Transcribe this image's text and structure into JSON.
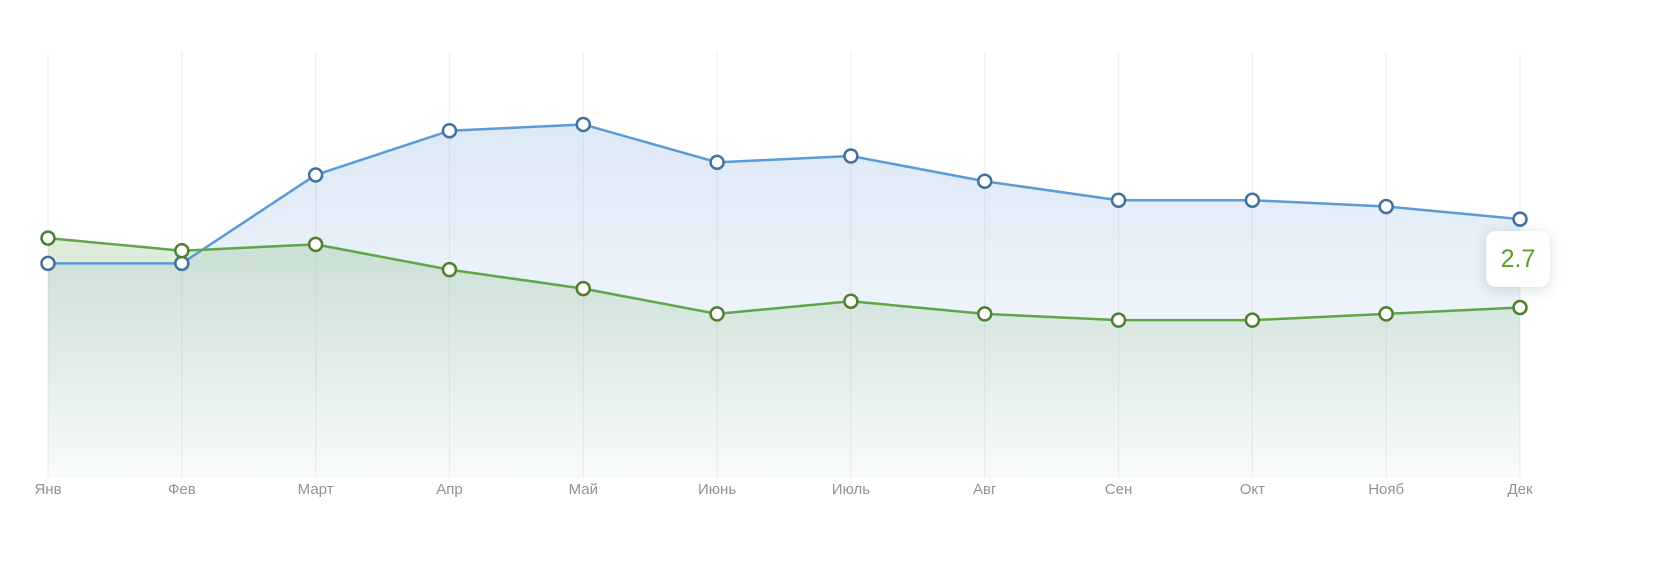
{
  "chart_data": {
    "type": "line",
    "title": "",
    "xlabel": "",
    "ylabel": "",
    "categories": [
      "Янв",
      "Фев",
      "Март",
      "Апр",
      "Май",
      "Июнь",
      "Июль",
      "Авг",
      "Сен",
      "Окт",
      "Нояб",
      "Дек"
    ],
    "series": [
      {
        "name": "blue-series",
        "color": "#5b9bd5",
        "marker_stroke": "#41719c",
        "fill_rgb": "110,160,215",
        "values": [
          3.4,
          3.4,
          4.8,
          5.5,
          5.6,
          5.0,
          5.1,
          4.7,
          4.4,
          4.4,
          4.3,
          4.1
        ]
      },
      {
        "name": "green-series",
        "color": "#61a646",
        "marker_stroke": "#4e8030",
        "fill_rgb": "110,170,95",
        "values": [
          3.8,
          3.6,
          3.7,
          3.3,
          3.0,
          2.6,
          2.8,
          2.6,
          2.5,
          2.5,
          2.6,
          2.7
        ]
      }
    ],
    "ylim": [
      0,
      6.7
    ],
    "grid": "vertical",
    "grid_color": "#ededed",
    "legend": "none"
  },
  "tooltip": {
    "value": "2.7",
    "color": "#56a032"
  },
  "axis": {
    "label_color": "#8f9398"
  }
}
